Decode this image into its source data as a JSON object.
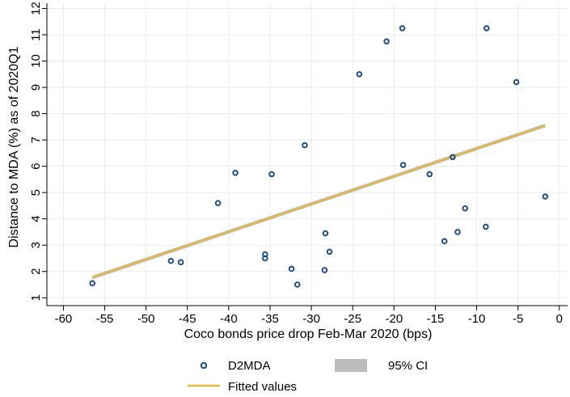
{
  "chart_data": {
    "type": "scatter",
    "xlabel": "Coco bonds price drop Feb-Mar 2020 (bps)",
    "ylabel": "Distance to MDA (%) as of 2020Q1",
    "xlim": [
      -62,
      1
    ],
    "ylim": [
      0.7,
      12.2
    ],
    "xticks": [
      -60,
      -55,
      -50,
      -45,
      -40,
      -35,
      -30,
      -25,
      -20,
      -15,
      -10,
      -5,
      0
    ],
    "yticks": [
      1,
      2,
      3,
      4,
      5,
      6,
      7,
      8,
      9,
      10,
      11,
      12
    ],
    "grid": true,
    "legend_position": "bottom",
    "series": [
      {
        "name": "D2MDA",
        "kind": "points",
        "color": "#1f4e8c",
        "x": [
          -56.5,
          -47,
          -45.8,
          -41.3,
          -39.2,
          -35.6,
          -35.6,
          -34.8,
          -30.8,
          -32.4,
          -31.7,
          -28.4,
          -28.3,
          -27.8,
          -24.2,
          -20.9,
          -19.0,
          -18.9,
          -15.7,
          -13.9,
          -12.9,
          -12.3,
          -11.4,
          -8.9,
          -8.8,
          -5.2,
          -1.7
        ],
        "y": [
          1.55,
          2.4,
          2.35,
          4.6,
          5.75,
          2.65,
          2.5,
          5.7,
          6.8,
          2.1,
          1.5,
          2.05,
          3.45,
          2.75,
          9.5,
          10.75,
          11.25,
          6.05,
          5.7,
          3.15,
          6.35,
          3.5,
          4.4,
          3.7,
          11.25,
          9.2,
          4.85
        ]
      },
      {
        "name": "Fitted values",
        "kind": "line",
        "color": "#e8b83a",
        "x": [
          -56.5,
          -1.7
        ],
        "y": [
          1.77,
          7.55
        ]
      },
      {
        "name": "95% CI",
        "kind": "band",
        "color": "#bdbdbd",
        "x": [
          -56.5,
          -1.7
        ],
        "y_low": [
          1.7,
          7.48
        ],
        "y_high": [
          1.84,
          7.62
        ]
      }
    ]
  },
  "legend": {
    "d2mda": "D2MDA",
    "ci": "95% CI",
    "fitted": "Fitted values"
  }
}
